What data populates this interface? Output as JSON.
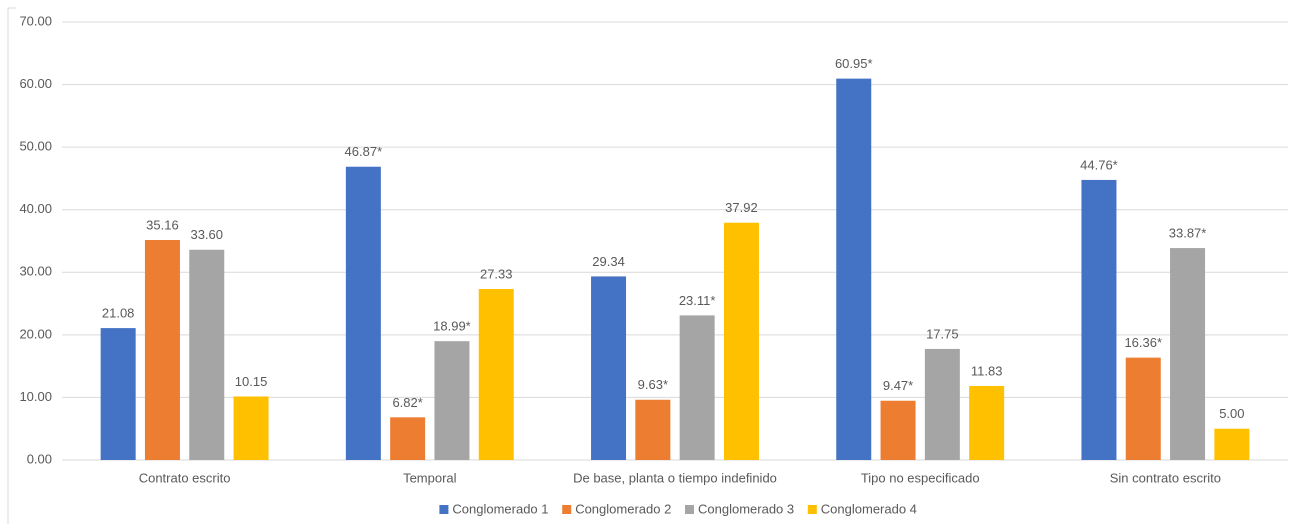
{
  "chart_data": {
    "type": "bar",
    "categories": [
      "Contrato escrito",
      "Temporal",
      "De base, planta o tiempo indefinido",
      "Tipo no especificado",
      "Sin contrato escrito"
    ],
    "series": [
      {
        "name": "Conglomerado 1",
        "color": "#4472c4",
        "values": [
          21.08,
          46.87,
          29.34,
          60.95,
          44.76
        ],
        "value_labels": [
          "21.08",
          "46.87*",
          "29.34",
          "60.95*",
          "44.76*"
        ]
      },
      {
        "name": "Conglomerado 2",
        "color": "#ed7d31",
        "values": [
          35.16,
          6.82,
          9.63,
          9.47,
          16.36
        ],
        "value_labels": [
          "35.16",
          "6.82*",
          "9.63*",
          "9.47*",
          "16.36*"
        ]
      },
      {
        "name": "Conglomerado 3",
        "color": "#a5a5a5",
        "values": [
          33.6,
          18.99,
          23.11,
          17.75,
          33.87
        ],
        "value_labels": [
          "33.60",
          "18.99*",
          "23.11*",
          "17.75",
          "33.87*"
        ]
      },
      {
        "name": "Conglomerado 4",
        "color": "#ffc000",
        "values": [
          10.15,
          27.33,
          37.92,
          11.83,
          5.0
        ],
        "value_labels": [
          "10.15",
          "27.33",
          "37.92",
          "11.83",
          "5.00"
        ]
      }
    ],
    "ylim": [
      0,
      70
    ],
    "yticks": [
      {
        "value": 0,
        "label": "0.00"
      },
      {
        "value": 10,
        "label": "10.00"
      },
      {
        "value": 20,
        "label": "20.00"
      },
      {
        "value": 30,
        "label": "30.00"
      },
      {
        "value": 40,
        "label": "40.00"
      },
      {
        "value": 50,
        "label": "50.00"
      },
      {
        "value": 60,
        "label": "60.00"
      },
      {
        "value": 70,
        "label": "70.00"
      }
    ],
    "grid": true,
    "legend": "bottom"
  }
}
